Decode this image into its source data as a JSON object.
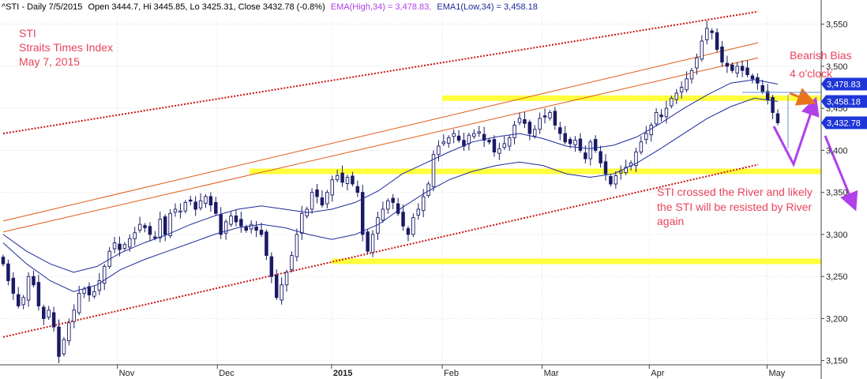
{
  "header": {
    "symbol": "^STI",
    "period": "Daily 7/5/2015",
    "ohlc": "Open 3444.7, Hi 3445.85, Lo 3425.31, Close 3432.78 (-0.8%)",
    "ema_high_label": "EMA(High,34) = 3,478.83,",
    "ema_low_label": "EMA1(Low,34) = 3,458.18"
  },
  "annotations": {
    "title_lines": [
      "STI",
      "Straits Times Index",
      "May 7, 2015"
    ],
    "bias_lines": [
      "Bearish Bias",
      "4 o'clock"
    ],
    "comment_lines": [
      "STI crossed the River and likely",
      "the STI will be resisted by River",
      "again"
    ]
  },
  "colors": {
    "candle": "#1a1a66",
    "ema": "#1c2b9c",
    "channel_dotted": "#cc1111",
    "channel_solid": "#e05a14",
    "support": "#ffff3c",
    "arrow_purple": "#b040e8",
    "arrow_orange": "#e8741c",
    "text_red": "#e8445a",
    "price_tag": "#1e36d8"
  },
  "chart_data": {
    "type": "candlestick",
    "y_axis": {
      "min": 3145,
      "max": 3560,
      "ticks": [
        3150,
        3200,
        3250,
        3300,
        3350,
        3400,
        3450,
        3500,
        3550
      ],
      "tick_labels": [
        "3,150",
        "3,200",
        "3,250",
        "3,300",
        "3,350",
        "3,400",
        "3,450",
        "3,500",
        "3,550"
      ],
      "position": "right"
    },
    "x_axis": {
      "start_date": "2014-10-02",
      "end_date": "2015-05-07",
      "labels": [
        {
          "date": "2014-11-03",
          "text": "Nov",
          "bold": false
        },
        {
          "date": "2014-12-01",
          "text": "Dec",
          "bold": false
        },
        {
          "date": "2015-01-02",
          "text": "2015",
          "bold": true
        },
        {
          "date": "2015-02-02",
          "text": "Feb",
          "bold": false
        },
        {
          "date": "2015-03-02",
          "text": "Mar",
          "bold": false
        },
        {
          "date": "2015-04-01",
          "text": "Apr",
          "bold": false
        },
        {
          "date": "2015-05-04",
          "text": "May",
          "bold": false
        }
      ]
    },
    "grid": true,
    "close_series": [
      3265,
      3245,
      3230,
      3215,
      3225,
      3250,
      3240,
      3215,
      3200,
      3210,
      3190,
      3155,
      3175,
      3195,
      3210,
      3230,
      3235,
      3228,
      3232,
      3245,
      3262,
      3280,
      3290,
      3282,
      3288,
      3295,
      3302,
      3312,
      3308,
      3300,
      3296,
      3318,
      3300,
      3325,
      3330,
      3328,
      3338,
      3340,
      3330,
      3340,
      3345,
      3335,
      3325,
      3300,
      3315,
      3322,
      3315,
      3310,
      3305,
      3312,
      3305,
      3300,
      3275,
      3250,
      3225,
      3240,
      3255,
      3275,
      3300,
      3325,
      3330,
      3350,
      3345,
      3335,
      3350,
      3365,
      3370,
      3362,
      3368,
      3360,
      3350,
      3300,
      3280,
      3300,
      3320,
      3330,
      3340,
      3338,
      3325,
      3310,
      3300,
      3320,
      3330,
      3345,
      3360,
      3395,
      3405,
      3410,
      3415,
      3420,
      3412,
      3405,
      3418,
      3420,
      3422,
      3412,
      3410,
      3398,
      3402,
      3408,
      3415,
      3430,
      3438,
      3432,
      3420,
      3425,
      3438,
      3440,
      3445,
      3430,
      3420,
      3410,
      3408,
      3412,
      3400,
      3390,
      3410,
      3400,
      3385,
      3372,
      3360,
      3370,
      3375,
      3380,
      3385,
      3398,
      3410,
      3420,
      3430,
      3445,
      3440,
      3450,
      3462,
      3468,
      3475,
      3485,
      3495,
      3510,
      3530,
      3545,
      3540,
      3520,
      3505,
      3500,
      3495,
      3500,
      3495,
      3490,
      3485,
      3480,
      3470,
      3460,
      3445,
      3432.78
    ],
    "ema_high": {
      "name": "EMA(High,34)",
      "last": 3478.83,
      "points": [
        3300,
        3280,
        3265,
        3255,
        3262,
        3278,
        3290,
        3300,
        3312,
        3322,
        3330,
        3334,
        3330,
        3326,
        3330,
        3338,
        3352,
        3372,
        3385,
        3398,
        3410,
        3416,
        3420,
        3414,
        3405,
        3402,
        3406,
        3416,
        3432,
        3450,
        3466,
        3480,
        3484,
        3478.83
      ]
    },
    "ema_low": {
      "name": "EMA1(Low,34)",
      "last": 3458.18,
      "points": [
        3290,
        3265,
        3245,
        3232,
        3240,
        3258,
        3270,
        3280,
        3290,
        3300,
        3308,
        3312,
        3308,
        3300,
        3294,
        3300,
        3312,
        3332,
        3350,
        3365,
        3375,
        3382,
        3386,
        3382,
        3372,
        3368,
        3372,
        3385,
        3402,
        3420,
        3438,
        3452,
        3462,
        3458.18
      ]
    },
    "price_tags": [
      3478.83,
      3458.18,
      3432.78
    ],
    "support_lines": [
      {
        "value": 3462,
        "from": "2015-02-02",
        "to": "2015-05-07"
      },
      {
        "value": 3375,
        "from": "2014-12-10",
        "to": "2015-05-07"
      },
      {
        "value": 3268,
        "from": "2015-01-02",
        "to": "2015-05-07"
      }
    ]
  }
}
